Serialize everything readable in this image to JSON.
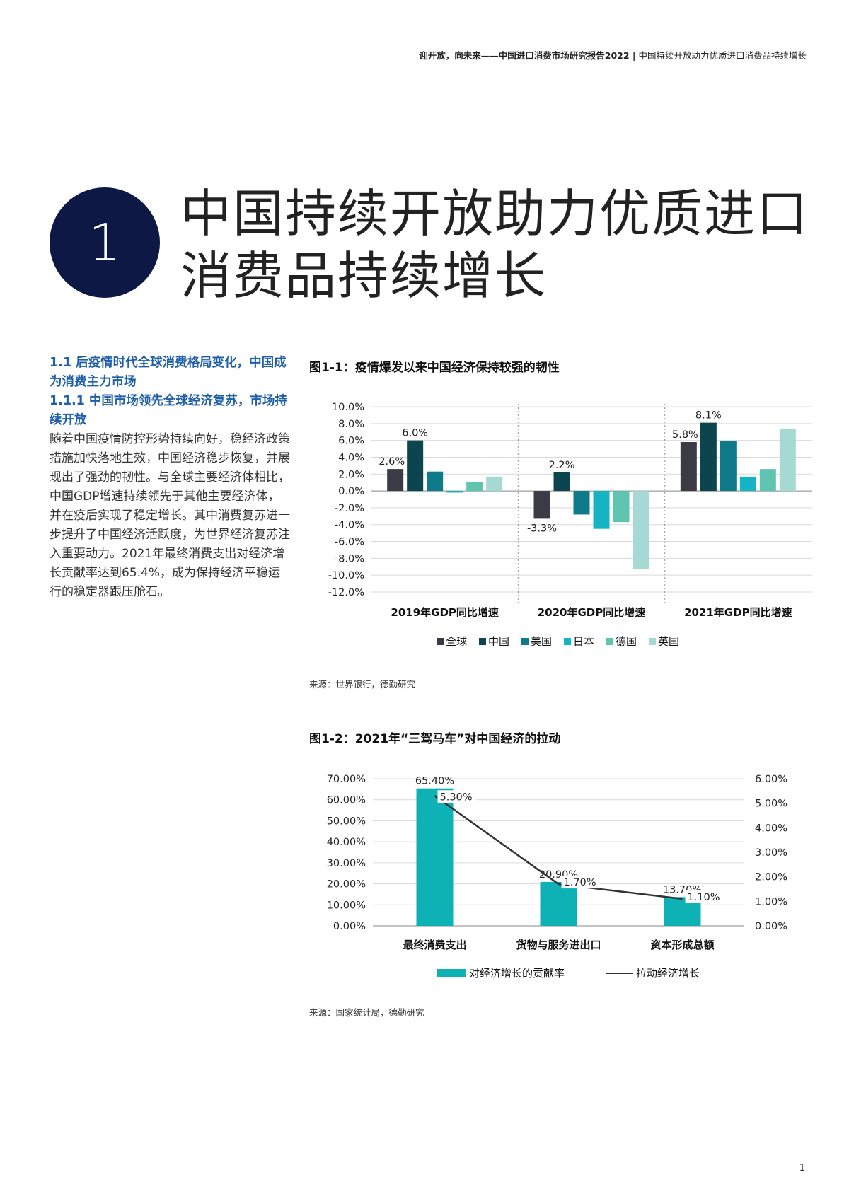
{
  "header": {
    "left": "迎开放，向未来——中国进口消费市场研究报告2022 |",
    "right": "中国持续开放助力优质进口消费品持续增长"
  },
  "chapter": {
    "number": "1",
    "title_line1": "中国持续开放助力优质进口",
    "title_line2": "消费品持续增长"
  },
  "left_column": {
    "section_heading": "1.1 后疫情时代全球消费格局变化，中国成为消费主力市场",
    "subsection_heading": "1.1.1 中国市场领先全球经济复苏，市场持续开放",
    "body": "随着中国疫情防控形势持续向好，稳经济政策措施加快落地生效，中国经济稳步恢复，并展现出了强劲的韧性。与全球主要经济体相比，中国GDP增速持续领先于其他主要经济体，并在疫后实现了稳定增长。其中消费复苏进一步提升了中国经济活跃度，为世界经济复苏注入重要动力。2021年最终消费支出对经济增长贡献率达到65.4%，成为保持经济平稳运行的稳定器跟压舱石。"
  },
  "figure1": {
    "title": "图1-1：疫情爆发以来中国经济保持较强的韧性",
    "source": "来源：世界银行，德勤研究"
  },
  "figure2": {
    "title": "图1-2：2021年“三驾马车”对中国经济的拉动",
    "source": "来源：国家统计局，德勤研究"
  },
  "page_number": "1",
  "chart_data": [
    {
      "type": "bar",
      "categories": [
        "2019年GDP同比增速",
        "2020年GDP同比增速",
        "2021年GDP同比增速"
      ],
      "series": [
        {
          "name": "全球",
          "color": "#3a3b45",
          "values": [
            2.6,
            -3.3,
            5.8
          ]
        },
        {
          "name": "中国",
          "color": "#0c4450",
          "values": [
            6.0,
            2.2,
            8.1
          ]
        },
        {
          "name": "美国",
          "color": "#0f7a8a",
          "values": [
            2.3,
            -2.8,
            5.9
          ]
        },
        {
          "name": "日本",
          "color": "#15b3c3",
          "values": [
            -0.2,
            -4.5,
            1.7
          ]
        },
        {
          "name": "德国",
          "color": "#5fc4b0",
          "values": [
            1.1,
            -3.7,
            2.6
          ]
        },
        {
          "name": "英国",
          "color": "#a6d9d3",
          "values": [
            1.7,
            -9.3,
            7.4
          ]
        }
      ],
      "data_labels": [
        {
          "category": 0,
          "series": 0,
          "text": "2.6%"
        },
        {
          "category": 0,
          "series": 1,
          "text": "6.0%"
        },
        {
          "category": 1,
          "series": 0,
          "text": "-3.3%"
        },
        {
          "category": 1,
          "series": 1,
          "text": "2.2%"
        },
        {
          "category": 2,
          "series": 0,
          "text": "5.8%"
        },
        {
          "category": 2,
          "series": 1,
          "text": "8.1%"
        }
      ],
      "yticks": [
        "10.0%",
        "8.0%",
        "6.0%",
        "4.0%",
        "2.0%",
        "0.0%",
        "-2.0%",
        "-4.0%",
        "-6.0%",
        "-8.0%",
        "-10.0%",
        "-12.0%"
      ],
      "ylim": [
        -12,
        10
      ],
      "grid": true,
      "legend_position": "bottom"
    },
    {
      "type": "bar",
      "categories": [
        "最终消费支出",
        "货物与服务进出口",
        "资本形成总额"
      ],
      "series": [
        {
          "name": "对经济增长的贡献率",
          "axis": "left",
          "color": "#0fb2b4",
          "values": [
            65.4,
            20.9,
            13.7
          ],
          "labels": [
            "65.40%",
            "20.90%",
            "13.70%"
          ]
        },
        {
          "name": "拉动经济增长",
          "axis": "right",
          "type": "line",
          "color": "#333333",
          "values": [
            5.3,
            1.7,
            1.1
          ],
          "labels": [
            "5.30%",
            "1.70%",
            "1.10%"
          ]
        }
      ],
      "yticks_left": [
        "70.00%",
        "60.00%",
        "50.00%",
        "40.00%",
        "30.00%",
        "20.00%",
        "10.00%",
        "0.00%"
      ],
      "yticks_right": [
        "6.00%",
        "5.00%",
        "4.00%",
        "3.00%",
        "2.00%",
        "1.00%",
        "0.00%"
      ],
      "ylim_left": [
        0,
        70
      ],
      "ylim_right": [
        0,
        6
      ],
      "grid": true,
      "legend_position": "bottom"
    }
  ]
}
